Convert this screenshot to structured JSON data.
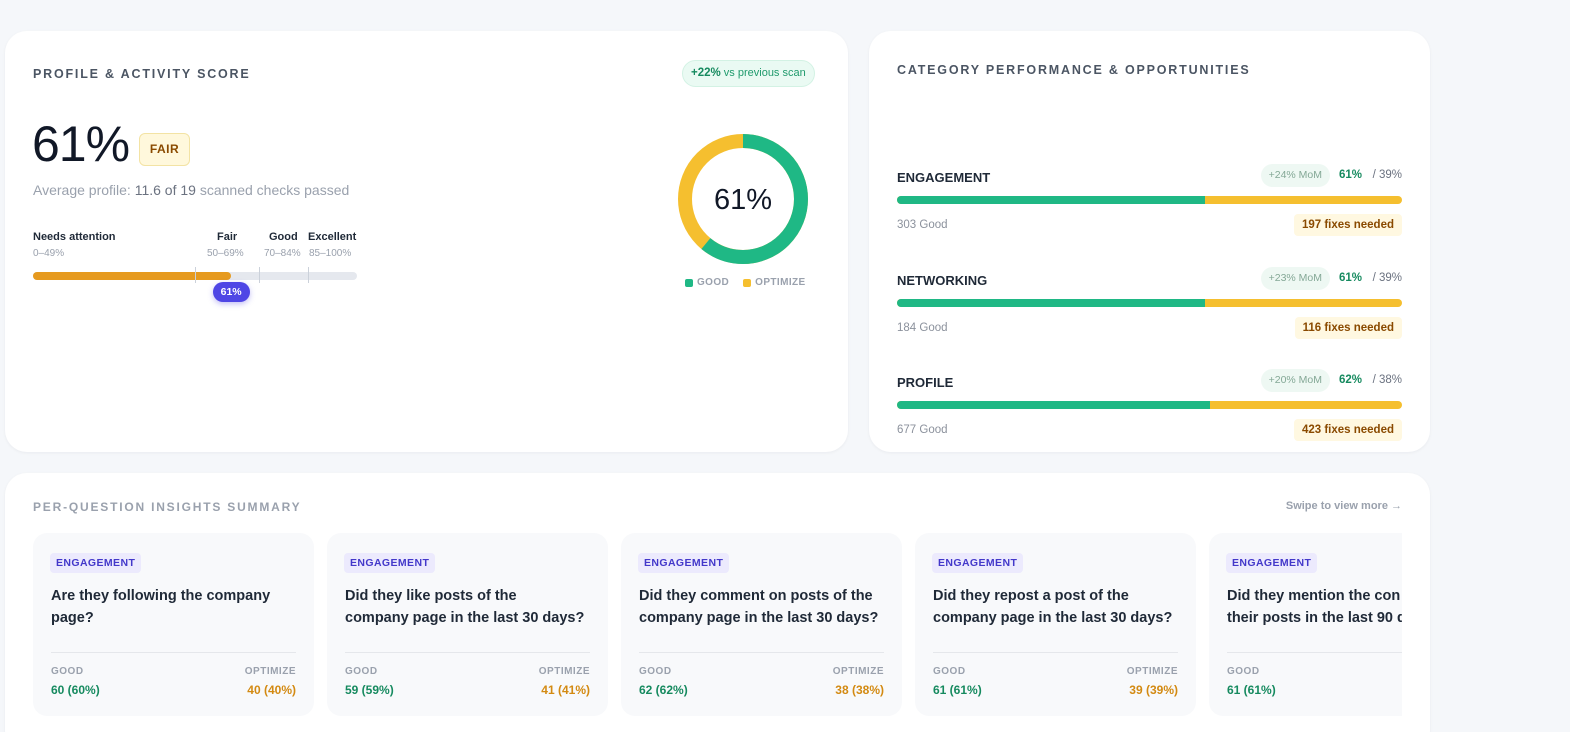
{
  "score_card": {
    "title": "PROFILE & ACTIVITY SCORE",
    "delta_value": "+22%",
    "delta_suffix": "vs previous scan",
    "score": "61%",
    "score_fraction": 0.61,
    "rating_badge": "FAIR",
    "avg_prefix": "Average profile:",
    "avg_value": "11.6 of 19",
    "avg_suffix": "scanned checks passed",
    "ranges": [
      {
        "label": "Needs attention",
        "sub": "0–49%"
      },
      {
        "label": "Fair",
        "sub": "50–69%"
      },
      {
        "label": "Good",
        "sub": "70–84%"
      },
      {
        "label": "Excellent",
        "sub": "85–100%"
      }
    ],
    "marker_label": "61%",
    "donut": {
      "center_label": "61%",
      "good_fraction": 0.61,
      "good_color": "#1fb885",
      "optimize_color": "#f5bf2f",
      "legend_good": "GOOD",
      "legend_optimize": "OPTIMIZE"
    },
    "colors": {
      "accent": "#4f46e5",
      "fill": "#e69a1f"
    }
  },
  "category_card": {
    "title": "CATEGORY PERFORMANCE & OPPORTUNITIES",
    "categories": [
      {
        "name": "ENGAGEMENT",
        "mom": "+24%  MoM",
        "good_pct": "61%",
        "opt_pct": "/ 39%",
        "good_fraction": 0.61,
        "good_count": "303 Good",
        "fixes": "197 fixes needed"
      },
      {
        "name": "NETWORKING",
        "mom": "+23%  MoM",
        "good_pct": "61%",
        "opt_pct": "/ 39%",
        "good_fraction": 0.61,
        "good_count": "184 Good",
        "fixes": "116 fixes needed"
      },
      {
        "name": "PROFILE",
        "mom": "+20%  MoM",
        "good_pct": "62%",
        "opt_pct": "/ 38%",
        "good_fraction": 0.62,
        "good_count": "677 Good",
        "fixes": "423 fixes needed"
      }
    ]
  },
  "insights": {
    "title": "PER-QUESTION INSIGHTS SUMMARY",
    "swipe_hint": "Swipe to view more →",
    "good_label": "GOOD",
    "optimize_label": "OPTIMIZE",
    "questions": [
      {
        "tag": "ENGAGEMENT",
        "line1": "Are they following the company",
        "line2": "page?",
        "good": "60 (60%)",
        "optimize": "40 (40%)"
      },
      {
        "tag": "ENGAGEMENT",
        "line1": "Did they like posts of the",
        "line2": "company page in the last 30 days?",
        "good": "59 (59%)",
        "optimize": "41 (41%)"
      },
      {
        "tag": "ENGAGEMENT",
        "line1": "Did they comment on posts of the",
        "line2": "company page in the last 30 days?",
        "good": "62 (62%)",
        "optimize": "38 (38%)"
      },
      {
        "tag": "ENGAGEMENT",
        "line1": "Did they repost a post of the",
        "line2": "company page in the last 30 days?",
        "good": "61 (61%)",
        "optimize": "39 (39%)"
      },
      {
        "tag": "ENGAGEMENT",
        "line1": "Did they mention the con",
        "line2": "their posts in the last 90 d",
        "good": "61 (61%)",
        "optimize": ""
      }
    ]
  }
}
